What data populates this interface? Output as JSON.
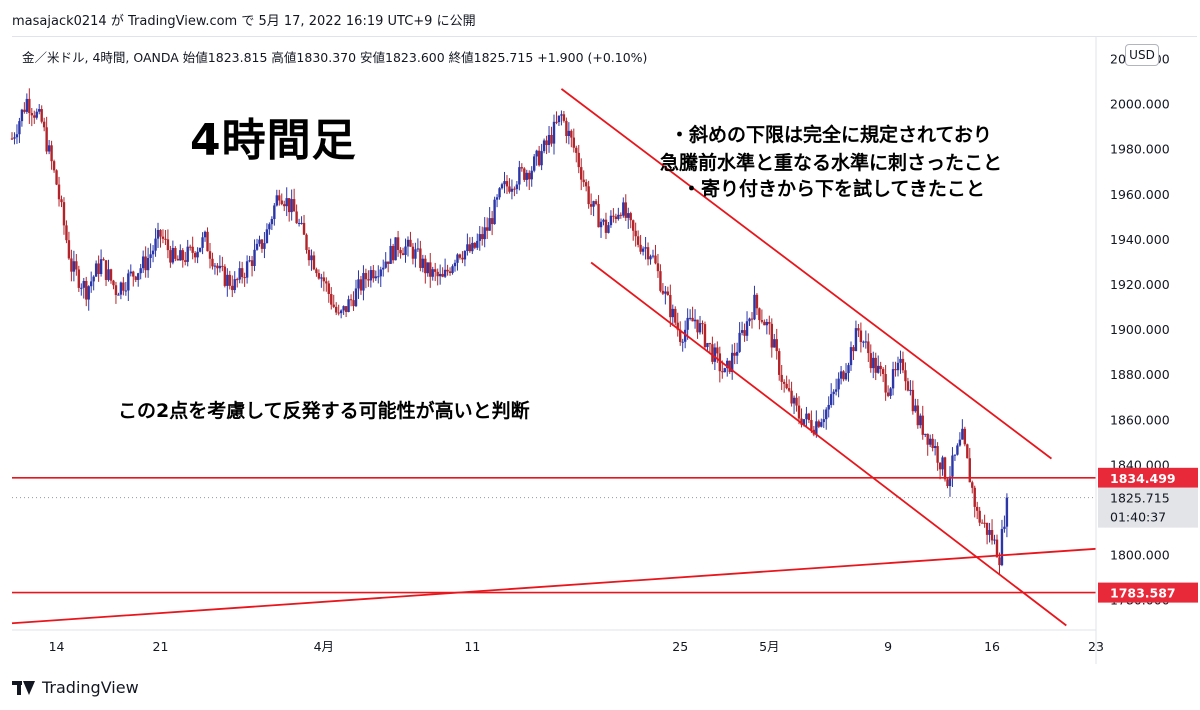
{
  "attribution": "masajack0214 が TradingView.com で 5月 17, 2022 16:19 UTC+9 に公開",
  "symbol_info": "金／米ドル, 4時間, OANDA  始値1823.815  高値1830.370  安値1823.600  終値1825.715  +1.900 (+0.10%)",
  "currency": "USD",
  "heading": "4時間足",
  "notes": [
    "・斜めの下限は完全に規定されており",
    "急騰前水準と重なる水準に刺さったこと",
    "・寄り付きから下を試してきたこと",
    "この2点を考慮して反発する可能性が高いと判断"
  ],
  "watermark": "TradingView",
  "colors": {
    "up": "#2b37a8",
    "down": "#b3242a",
    "annotation": "#e8161c",
    "label_bg": "#e8293a",
    "current_bg": "#e3e4e8"
  },
  "chart_data": {
    "type": "candlestick",
    "title": "金／米ドル, 4時間, OANDA",
    "x_axis": {
      "type": "date",
      "start": "2022-03-11",
      "end": "2022-05-23",
      "ticks": [
        {
          "date": "2022-03-14",
          "label": "14"
        },
        {
          "date": "2022-03-21",
          "label": "21"
        },
        {
          "date": "2022-04-01",
          "label": "4月"
        },
        {
          "date": "2022-04-11",
          "label": "11"
        },
        {
          "date": "2022-04-25",
          "label": "25"
        },
        {
          "date": "2022-05-01",
          "label": "5月"
        },
        {
          "date": "2022-05-09",
          "label": "9"
        },
        {
          "date": "2022-05-16",
          "label": "16"
        },
        {
          "date": "2022-05-23",
          "label": "23"
        }
      ]
    },
    "y_axis": {
      "range": [
        1767,
        2030
      ],
      "ticks": [
        "2020.000",
        "2000.000",
        "1980.000",
        "1960.000",
        "1940.000",
        "1920.000",
        "1900.000",
        "1880.000",
        "1860.000",
        "1840.000",
        "1820.000",
        "1800.000",
        "1780.000"
      ]
    },
    "anchors": [
      {
        "date": "2022-03-11",
        "close": 1985
      },
      {
        "date": "2022-03-12",
        "close": 2002
      },
      {
        "date": "2022-03-13",
        "close": 1992
      },
      {
        "date": "2022-03-14",
        "close": 1965
      },
      {
        "date": "2022-03-15",
        "close": 1928
      },
      {
        "date": "2022-03-16",
        "close": 1918
      },
      {
        "date": "2022-03-17",
        "close": 1930
      },
      {
        "date": "2022-03-18",
        "close": 1918
      },
      {
        "date": "2022-03-20",
        "close": 1930
      },
      {
        "date": "2022-03-21",
        "close": 1942
      },
      {
        "date": "2022-03-22",
        "close": 1930
      },
      {
        "date": "2022-03-23",
        "close": 1934
      },
      {
        "date": "2022-03-24",
        "close": 1940
      },
      {
        "date": "2022-03-25",
        "close": 1925
      },
      {
        "date": "2022-03-26",
        "close": 1920
      },
      {
        "date": "2022-03-28",
        "close": 1940
      },
      {
        "date": "2022-03-29",
        "close": 1962
      },
      {
        "date": "2022-03-30",
        "close": 1952
      },
      {
        "date": "2022-03-31",
        "close": 1935
      },
      {
        "date": "2022-04-01",
        "close": 1922
      },
      {
        "date": "2022-04-02",
        "close": 1905
      },
      {
        "date": "2022-04-03",
        "close": 1915
      },
      {
        "date": "2022-04-04",
        "close": 1925
      },
      {
        "date": "2022-04-05",
        "close": 1930
      },
      {
        "date": "2022-04-06",
        "close": 1938
      },
      {
        "date": "2022-04-07",
        "close": 1935
      },
      {
        "date": "2022-04-08",
        "close": 1926
      },
      {
        "date": "2022-04-09",
        "close": 1922
      },
      {
        "date": "2022-04-10",
        "close": 1935
      },
      {
        "date": "2022-04-11",
        "close": 1935
      },
      {
        "date": "2022-04-12",
        "close": 1945
      },
      {
        "date": "2022-04-13",
        "close": 1962
      },
      {
        "date": "2022-04-14",
        "close": 1968
      },
      {
        "date": "2022-04-15",
        "close": 1972
      },
      {
        "date": "2022-04-16",
        "close": 1982
      },
      {
        "date": "2022-04-17",
        "close": 1995
      },
      {
        "date": "2022-04-18",
        "close": 1978
      },
      {
        "date": "2022-04-19",
        "close": 1955
      },
      {
        "date": "2022-04-20",
        "close": 1945
      },
      {
        "date": "2022-04-21",
        "close": 1955
      },
      {
        "date": "2022-04-22",
        "close": 1940
      },
      {
        "date": "2022-04-23",
        "close": 1935
      },
      {
        "date": "2022-04-24",
        "close": 1915
      },
      {
        "date": "2022-04-25",
        "close": 1898
      },
      {
        "date": "2022-04-26",
        "close": 1905
      },
      {
        "date": "2022-04-27",
        "close": 1892
      },
      {
        "date": "2022-04-28",
        "close": 1880
      },
      {
        "date": "2022-04-29",
        "close": 1895
      },
      {
        "date": "2022-04-30",
        "close": 1912
      },
      {
        "date": "2022-05-01",
        "close": 1900
      },
      {
        "date": "2022-05-02",
        "close": 1875
      },
      {
        "date": "2022-05-03",
        "close": 1862
      },
      {
        "date": "2022-05-04",
        "close": 1858
      },
      {
        "date": "2022-05-05",
        "close": 1866
      },
      {
        "date": "2022-05-06",
        "close": 1882
      },
      {
        "date": "2022-05-07",
        "close": 1900
      },
      {
        "date": "2022-05-08",
        "close": 1885
      },
      {
        "date": "2022-05-09",
        "close": 1875
      },
      {
        "date": "2022-05-10",
        "close": 1885
      },
      {
        "date": "2022-05-11",
        "close": 1860
      },
      {
        "date": "2022-05-12",
        "close": 1850
      },
      {
        "date": "2022-05-13",
        "close": 1834
      },
      {
        "date": "2022-05-14",
        "close": 1852
      },
      {
        "date": "2022-05-15",
        "close": 1818
      },
      {
        "date": "2022-05-16",
        "close": 1808
      },
      {
        "date": "2022-05-16T12:00",
        "close": 1800
      },
      {
        "date": "2022-05-17",
        "close": 1825.715
      }
    ],
    "trendlines": [
      {
        "name": "channel-upper",
        "from": {
          "date": "2022-04-17",
          "value": 2007
        },
        "to": {
          "date": "2022-05-20",
          "value": 1843
        }
      },
      {
        "name": "channel-lower",
        "from": {
          "date": "2022-04-19",
          "value": 1930
        },
        "to": {
          "date": "2022-05-21",
          "value": 1769
        }
      },
      {
        "name": "support-diagonal",
        "from": {
          "date": "2022-03-11",
          "value": 1770
        },
        "to": {
          "date": "2022-05-23",
          "value": 1803
        }
      }
    ],
    "horizontal_levels": [
      {
        "value": 1834.499,
        "label": "1834.499"
      },
      {
        "value": 1783.587,
        "label": "1783.587"
      }
    ],
    "current_price": {
      "value": 1825.715,
      "label": "1825.715",
      "countdown": "01:40:37"
    }
  }
}
